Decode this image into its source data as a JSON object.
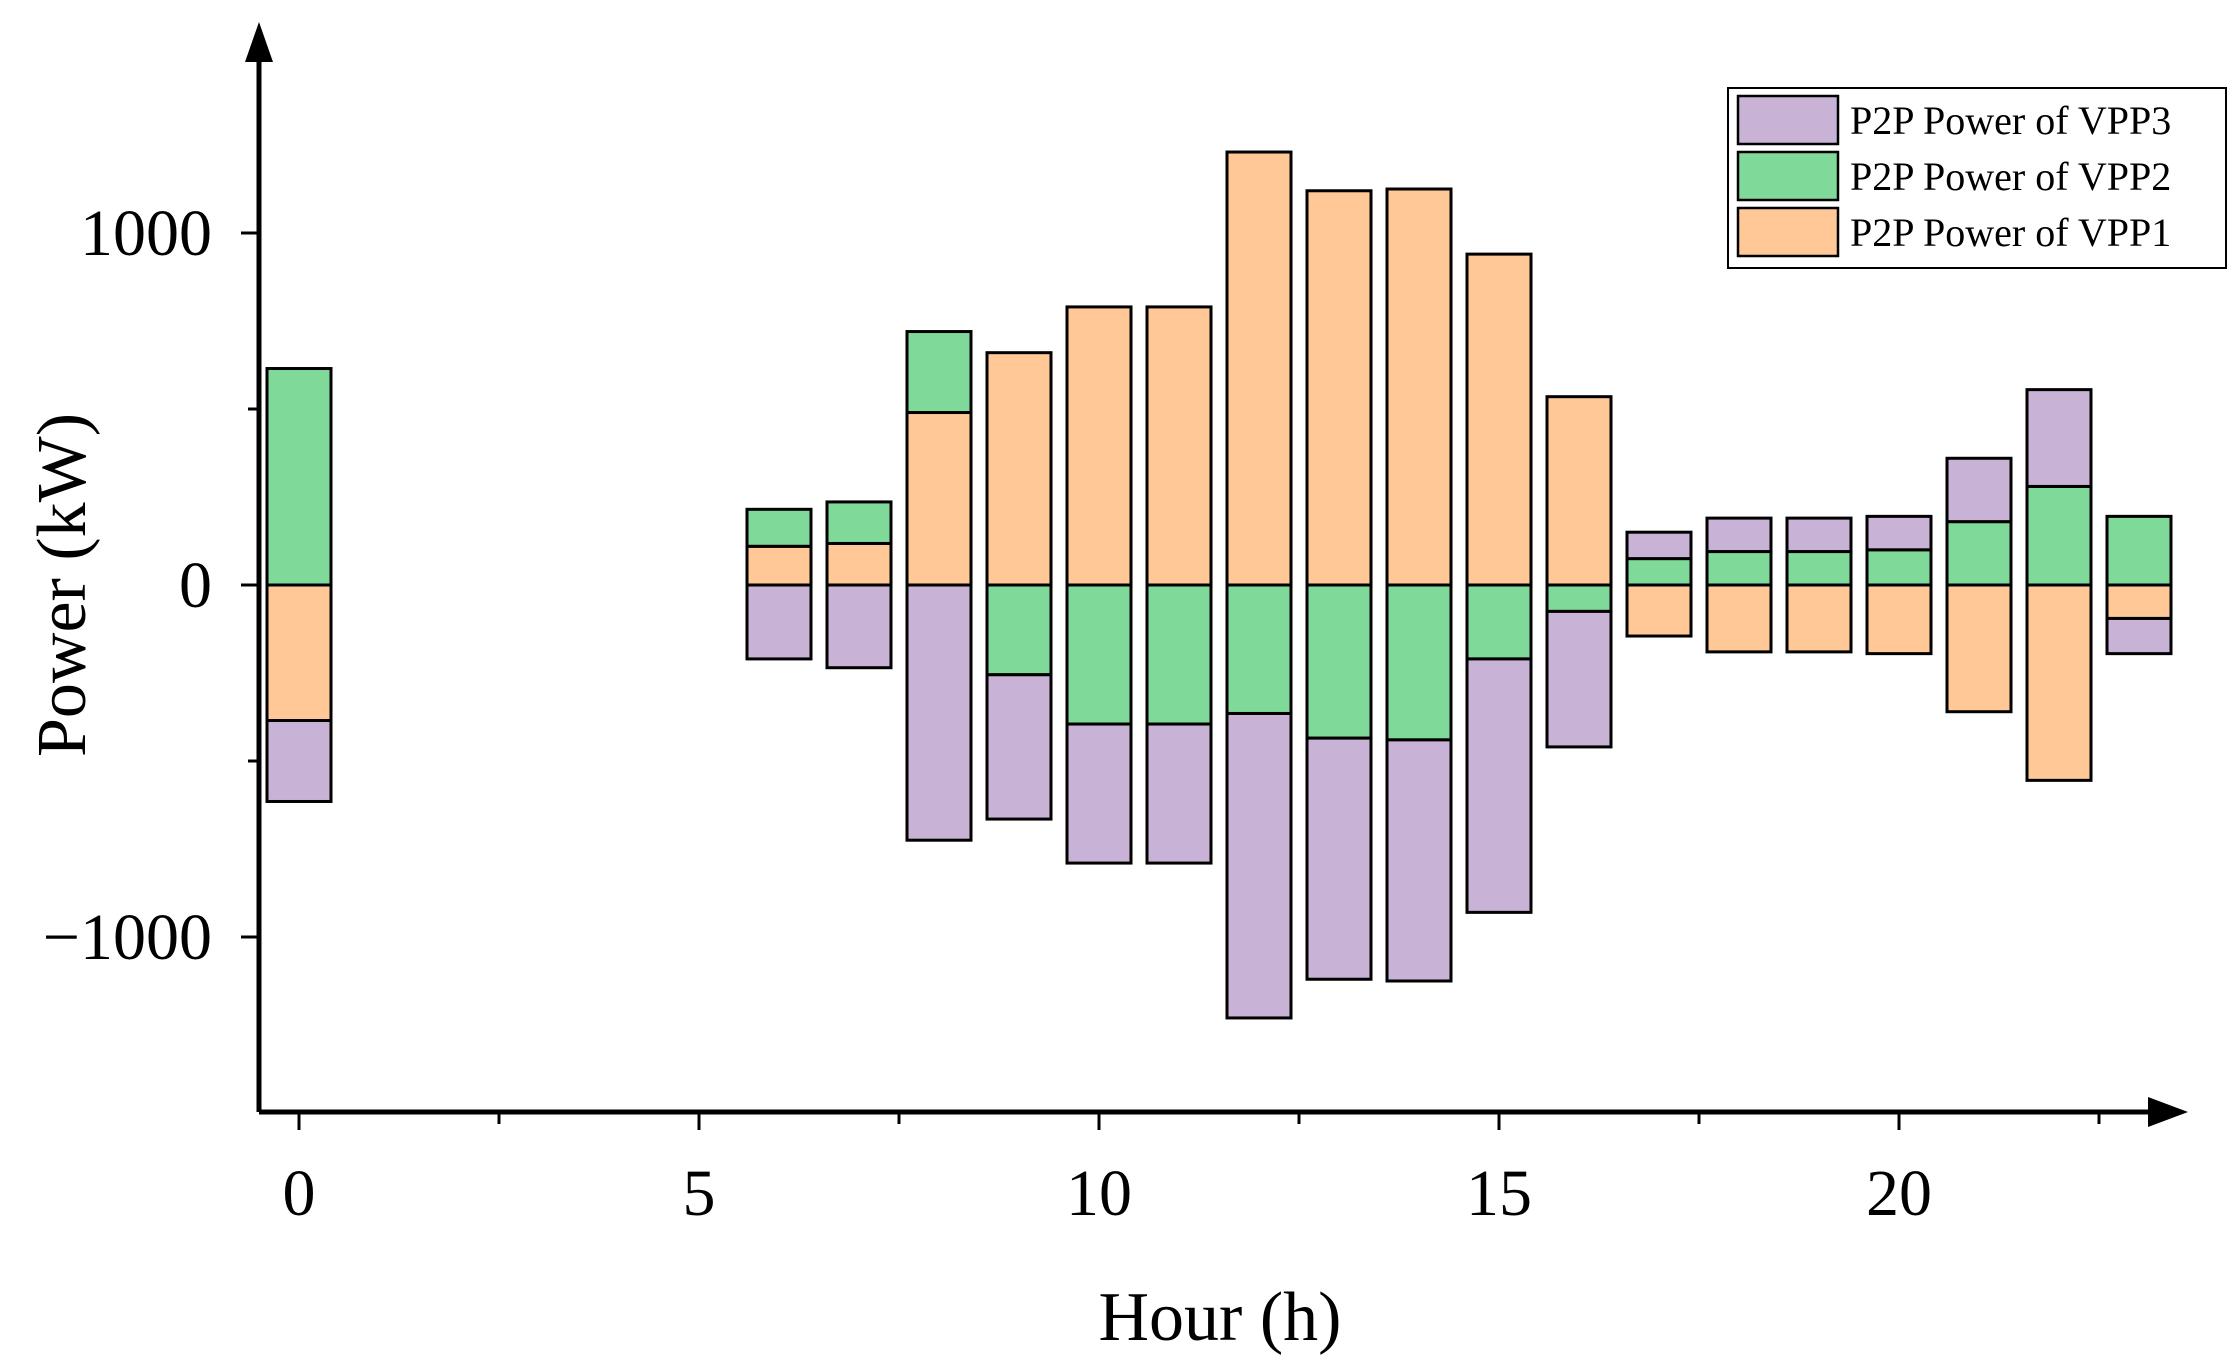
{
  "chart_data": {
    "type": "bar",
    "stacked": true,
    "title": "",
    "xlabel": "Hour (h)",
    "ylabel": "Power (kW)",
    "xlim": [
      -0.5,
      23.5
    ],
    "ylim": [
      -1500,
      1500
    ],
    "x_ticks": [
      0,
      5,
      10,
      15,
      20
    ],
    "x_tick_labels": [
      "0",
      "5",
      "10",
      "15",
      "20"
    ],
    "y_ticks": [
      -1000,
      0,
      1000
    ],
    "y_tick_labels": [
      "−1000",
      "0",
      "1000"
    ],
    "legend_position": "top-right",
    "x": [
      0,
      6,
      7,
      8,
      9,
      10,
      11,
      12,
      13,
      14,
      15,
      16,
      17,
      18,
      19,
      20,
      21,
      22,
      23
    ],
    "series": [
      {
        "name": "P2P Power of VPP1",
        "color": "#FFC896",
        "values": [
          -385,
          110,
          118,
          490,
          660,
          790,
          790,
          1230,
          1120,
          1125,
          940,
          535,
          -145,
          -190,
          -190,
          -195,
          -360,
          -555,
          -95
        ]
      },
      {
        "name": "P2P Power of VPP2",
        "color": "#7FDA9A",
        "values": [
          615,
          105,
          118,
          230,
          -255,
          -395,
          -395,
          -365,
          -435,
          -440,
          -210,
          -75,
          75,
          95,
          95,
          100,
          180,
          280,
          195
        ]
      },
      {
        "name": "P2P Power of VPP3",
        "color": "#C8B2D6",
        "values": [
          -230,
          -210,
          -235,
          -725,
          -410,
          -395,
          -395,
          -865,
          -685,
          -685,
          -720,
          -385,
          75,
          95,
          95,
          95,
          180,
          275,
          -100
        ]
      }
    ],
    "legend_order": [
      "P2P Power of VPP3",
      "P2P Power of VPP2",
      "P2P Power of VPP1"
    ]
  }
}
